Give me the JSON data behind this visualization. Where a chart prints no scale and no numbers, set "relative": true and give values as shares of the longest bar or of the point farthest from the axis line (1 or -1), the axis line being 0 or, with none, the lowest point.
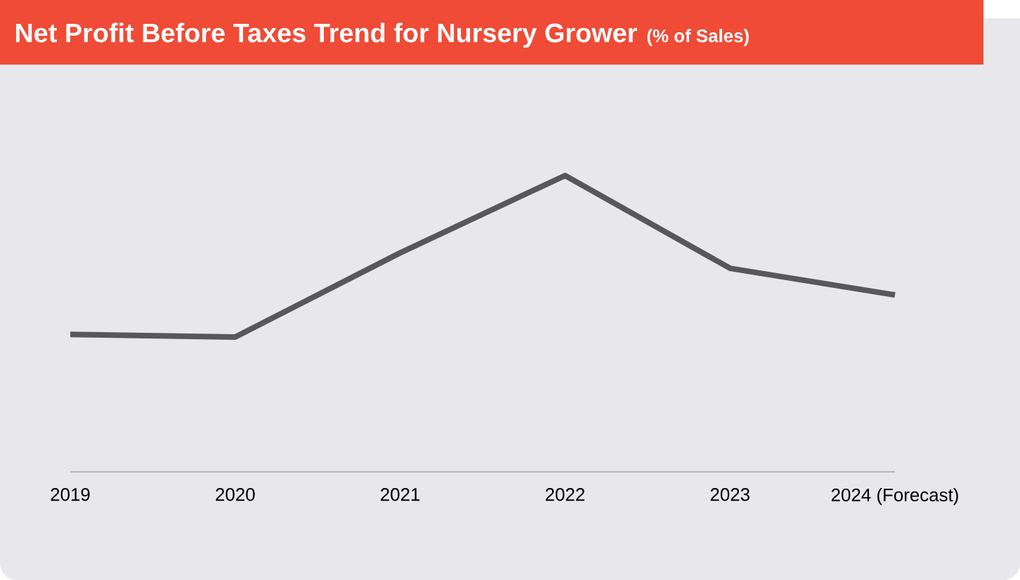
{
  "chart_data": {
    "type": "line",
    "title": "Net Profit Before Taxes Trend for Nursery Grower",
    "subtitle": "(% of Sales)",
    "categories": [
      "2019",
      "2020",
      "2021",
      "2022",
      "2023",
      "2024 (Forecast)"
    ],
    "values": [
      0.464,
      0.455,
      0.739,
      1,
      0.687,
      0.597
    ],
    "color": "#58585a",
    "relative": true
  }
}
